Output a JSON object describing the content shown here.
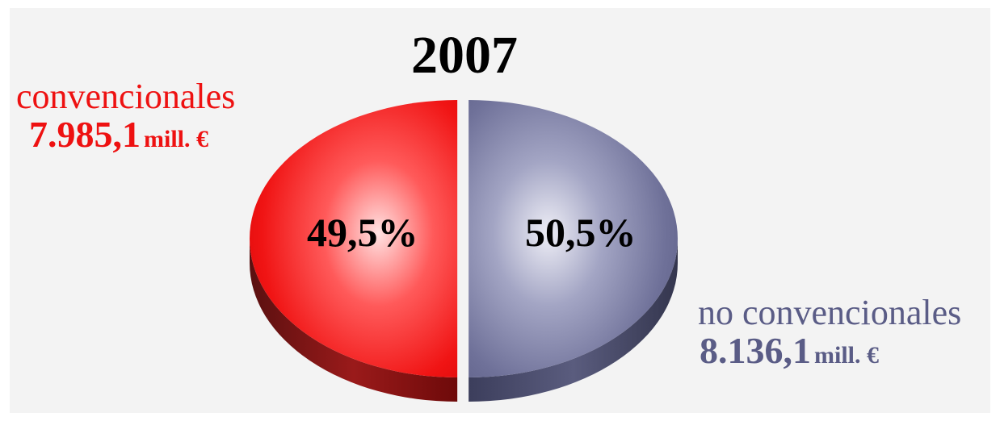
{
  "colors": {
    "red": "#ee1111",
    "slate": "#5a5c86",
    "background": "#f3f3f3"
  },
  "chart_data": {
    "type": "pie",
    "style": "3d-exploded",
    "title": "2007",
    "slices": [
      {
        "name": "convencionales",
        "value": 7985.1,
        "percent": 49.5,
        "percent_label": "49,5%",
        "amount_label": "7.985,1",
        "unit_label": "mill. €",
        "color": "#ee1111"
      },
      {
        "name": "no convencionales",
        "value": 8136.1,
        "percent": 50.5,
        "percent_label": "50,5%",
        "amount_label": "8.136,1",
        "unit_label": "mill. €",
        "color": "#5a5c86"
      }
    ]
  }
}
